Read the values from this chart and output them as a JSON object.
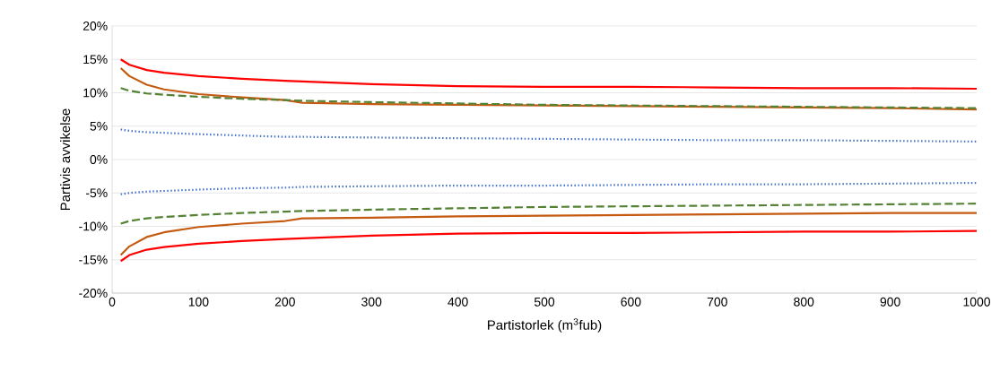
{
  "chart_data": {
    "type": "line",
    "xlabel": "Partistorlek (m$^{3}$fub)",
    "ylabel": "Partivis avvikelse",
    "x": [
      10,
      20,
      40,
      60,
      100,
      150,
      200,
      220,
      300,
      400,
      500,
      600,
      700,
      800,
      900,
      1000
    ],
    "series": [
      {
        "color": "#ff0000",
        "line_style": "solid",
        "values": [
          15,
          14.2,
          13.4,
          13,
          12.5,
          12.1,
          11.8,
          11.7,
          11.3,
          11,
          10.9,
          10.9,
          10.8,
          10.7,
          10.7,
          10.6
        ]
      },
      {
        "color": "#ff0000",
        "line_style": "solid",
        "values": [
          -15.2,
          -14.3,
          -13.5,
          -13.1,
          -12.6,
          -12.2,
          -11.9,
          -11.8,
          -11.4,
          -11.1,
          -11,
          -11,
          -10.9,
          -10.8,
          -10.8,
          -10.7
        ]
      },
      {
        "color": "#c55a11",
        "line_style": "solid",
        "values": [
          13.7,
          12.5,
          11.2,
          10.5,
          9.8,
          9.3,
          8.9,
          8.5,
          8.3,
          8.2,
          8.1,
          8,
          7.9,
          7.8,
          7.7,
          7.5
        ]
      },
      {
        "color": "#c55a11",
        "line_style": "solid",
        "values": [
          -14.3,
          -13,
          -11.6,
          -10.9,
          -10.1,
          -9.6,
          -9.2,
          -8.8,
          -8.7,
          -8.5,
          -8.4,
          -8.3,
          -8.2,
          -8.1,
          -8,
          -8
        ]
      },
      {
        "color": "#548235",
        "line_style": "dashed",
        "values": [
          10.7,
          10.3,
          9.9,
          9.7,
          9.4,
          9.1,
          8.9,
          8.8,
          8.6,
          8.4,
          8.2,
          8.1,
          8,
          7.9,
          7.8,
          7.7
        ]
      },
      {
        "color": "#548235",
        "line_style": "dashed",
        "values": [
          -9.6,
          -9.2,
          -8.8,
          -8.6,
          -8.3,
          -8,
          -7.8,
          -7.7,
          -7.5,
          -7.3,
          -7.1,
          -7,
          -6.9,
          -6.8,
          -6.7,
          -6.6
        ]
      },
      {
        "color": "#4472c4",
        "line_style": "dotted",
        "values": [
          4.5,
          4.3,
          4.1,
          4,
          3.8,
          3.6,
          3.4,
          3.4,
          3.3,
          3.2,
          3.1,
          3,
          2.9,
          2.9,
          2.8,
          2.7
        ]
      },
      {
        "color": "#4472c4",
        "line_style": "dotted",
        "values": [
          -5.2,
          -5,
          -4.8,
          -4.7,
          -4.5,
          -4.3,
          -4.2,
          -4.1,
          -4,
          -3.9,
          -3.9,
          -3.8,
          -3.7,
          -3.7,
          -3.6,
          -3.5
        ]
      }
    ],
    "xlim": [
      0,
      1000
    ],
    "xticks": [
      0,
      100,
      200,
      300,
      400,
      500,
      600,
      700,
      800,
      900,
      1000
    ],
    "ylim": [
      -20,
      20
    ],
    "yticks": [
      {
        "value": -20,
        "label": "-20%"
      },
      {
        "value": -15,
        "label": "-15%"
      },
      {
        "value": -10,
        "label": "-10%"
      },
      {
        "value": -5,
        "label": "-5%"
      },
      {
        "value": 0,
        "label": "0%"
      },
      {
        "value": 5,
        "label": "5%"
      },
      {
        "value": 10,
        "label": "10%"
      },
      {
        "value": 15,
        "label": "15%"
      },
      {
        "value": 20,
        "label": "20%"
      }
    ],
    "grid": "y"
  }
}
